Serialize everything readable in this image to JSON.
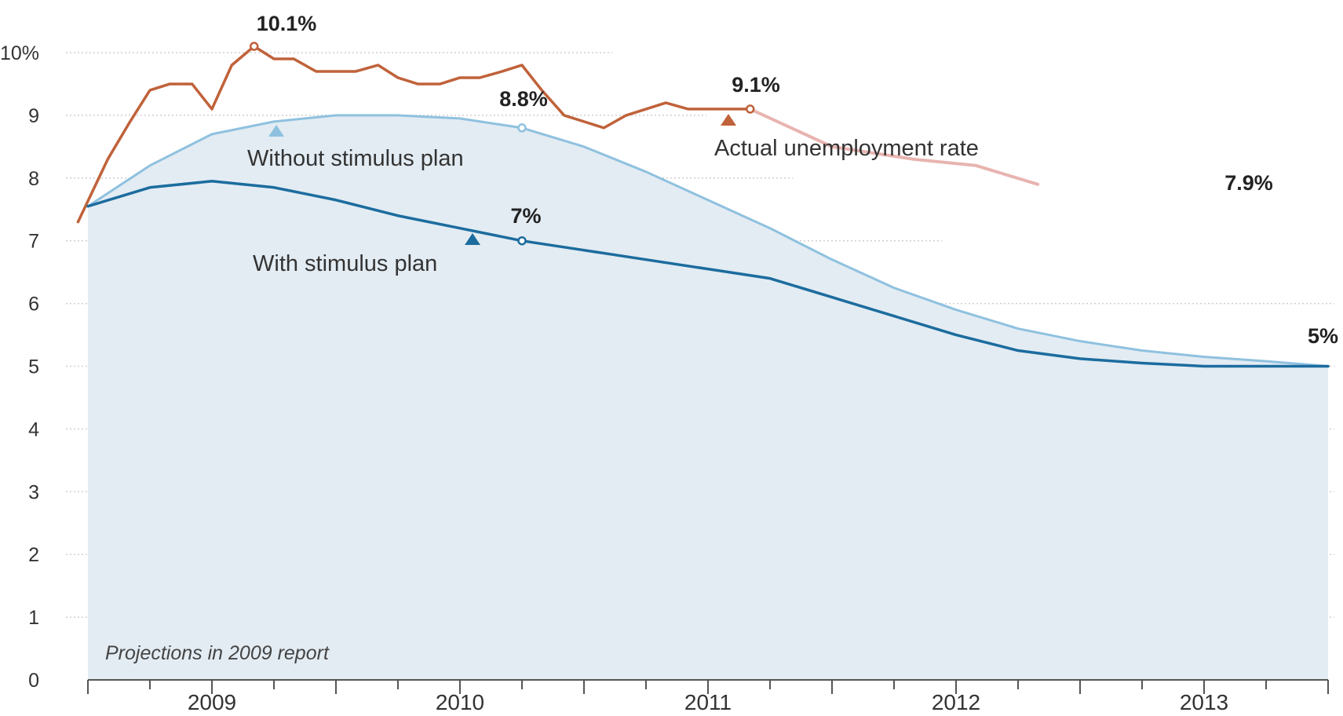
{
  "chart_data": {
    "type": "line",
    "title": "",
    "xlabel": "",
    "ylabel": "",
    "ylim": [
      0,
      10.5
    ],
    "xlim": [
      2008.5,
      2013.5
    ],
    "grid": true,
    "y_ticks": [
      "0",
      "1",
      "2",
      "3",
      "4",
      "5",
      "6",
      "7",
      "8",
      "9",
      "10%"
    ],
    "y_tick_values": [
      0,
      1,
      2,
      3,
      4,
      5,
      6,
      7,
      8,
      9,
      10
    ],
    "x_tick_labels": [
      {
        "label": "2009",
        "x": 2009.0
      },
      {
        "label": "2010",
        "x": 2010.0
      },
      {
        "label": "2011",
        "x": 2011.0
      },
      {
        "label": "2012",
        "x": 2012.0
      },
      {
        "label": "2013",
        "x": 2013.0
      }
    ],
    "series": [
      {
        "name": "Actual unemployment rate",
        "color": "#c0623a",
        "points": [
          [
            2008.46,
            7.3
          ],
          [
            2008.58,
            8.3
          ],
          [
            2008.67,
            8.9
          ],
          [
            2008.75,
            9.4
          ],
          [
            2008.83,
            9.5
          ],
          [
            2008.92,
            9.5
          ],
          [
            2009.0,
            9.1
          ],
          [
            2009.08,
            9.8
          ],
          [
            2009.17,
            10.1
          ],
          [
            2009.25,
            9.9
          ],
          [
            2009.33,
            9.9
          ],
          [
            2009.42,
            9.7
          ],
          [
            2009.5,
            9.7
          ],
          [
            2009.58,
            9.7
          ],
          [
            2009.67,
            9.8
          ],
          [
            2009.75,
            9.6
          ],
          [
            2009.83,
            9.5
          ],
          [
            2009.92,
            9.5
          ],
          [
            2010.0,
            9.6
          ],
          [
            2010.08,
            9.6
          ],
          [
            2010.17,
            9.7
          ],
          [
            2010.25,
            9.8
          ],
          [
            2010.33,
            9.4
          ],
          [
            2010.42,
            9.0
          ],
          [
            2010.5,
            8.9
          ],
          [
            2010.58,
            8.8
          ],
          [
            2010.67,
            9.0
          ],
          [
            2010.75,
            9.1
          ],
          [
            2010.83,
            9.2
          ],
          [
            2010.92,
            9.1
          ],
          [
            2011.0,
            9.1
          ],
          [
            2011.17,
            9.1
          ]
        ]
      },
      {
        "name": "Actual unemployment rate (continued)",
        "color": "#e8b4b0",
        "points": [
          [
            2011.17,
            9.1
          ],
          [
            2011.5,
            8.5
          ],
          [
            2011.83,
            8.3
          ],
          [
            2012.08,
            8.2
          ],
          [
            2012.33,
            7.9
          ]
        ]
      },
      {
        "name": "Without stimulus plan",
        "color": "#8fc1df",
        "points": [
          [
            2008.5,
            7.55
          ],
          [
            2008.75,
            8.2
          ],
          [
            2009.0,
            8.7
          ],
          [
            2009.25,
            8.9
          ],
          [
            2009.5,
            9.0
          ],
          [
            2009.75,
            9.0
          ],
          [
            2010.0,
            8.95
          ],
          [
            2010.25,
            8.8
          ],
          [
            2010.5,
            8.5
          ],
          [
            2010.75,
            8.1
          ],
          [
            2011.0,
            7.65
          ],
          [
            2011.25,
            7.2
          ],
          [
            2011.5,
            6.7
          ],
          [
            2011.75,
            6.25
          ],
          [
            2012.0,
            5.9
          ],
          [
            2012.25,
            5.6
          ],
          [
            2012.5,
            5.4
          ],
          [
            2012.75,
            5.25
          ],
          [
            2013.0,
            5.15
          ],
          [
            2013.25,
            5.08
          ],
          [
            2013.5,
            5.0
          ]
        ]
      },
      {
        "name": "With stimulus plan",
        "color": "#1c6c9e",
        "points": [
          [
            2008.5,
            7.55
          ],
          [
            2008.75,
            7.85
          ],
          [
            2009.0,
            7.95
          ],
          [
            2009.25,
            7.85
          ],
          [
            2009.5,
            7.65
          ],
          [
            2009.75,
            7.4
          ],
          [
            2010.0,
            7.2
          ],
          [
            2010.25,
            7.0
          ],
          [
            2010.5,
            6.85
          ],
          [
            2010.75,
            6.7
          ],
          [
            2011.0,
            6.55
          ],
          [
            2011.25,
            6.4
          ],
          [
            2011.5,
            6.1
          ],
          [
            2011.75,
            5.8
          ],
          [
            2012.0,
            5.5
          ],
          [
            2012.25,
            5.25
          ],
          [
            2012.5,
            5.12
          ],
          [
            2012.75,
            5.05
          ],
          [
            2013.0,
            5.0
          ],
          [
            2013.25,
            5.0
          ],
          [
            2013.5,
            5.0
          ]
        ]
      }
    ],
    "annotations": [
      {
        "text": "10.1%",
        "x": 2009.17,
        "y": 10.1,
        "style": "bold",
        "series": 0
      },
      {
        "text": "9.1%",
        "x": 2011.17,
        "y": 9.1,
        "style": "bold",
        "series": 0
      },
      {
        "text": "8.8%",
        "x": 2010.25,
        "y": 8.8,
        "style": "bold",
        "series": 2
      },
      {
        "text": "7%",
        "x": 2010.25,
        "y": 7.0,
        "style": "bold",
        "series": 3
      },
      {
        "text": "5%",
        "x": 2013.5,
        "y": 5.0,
        "style": "bold"
      },
      {
        "text": "7.9%",
        "x": 2012.33,
        "y": 7.9,
        "style": "bold"
      }
    ],
    "series_labels": [
      {
        "text": "Without stimulus plan",
        "x": 2009.05,
        "y": 8.7,
        "color": "#8fc1df"
      },
      {
        "text": "With stimulus plan",
        "x": 2010.05,
        "y": 6.97,
        "color": "#1c6c9e"
      },
      {
        "text": "Actual unemployment rate",
        "x": 2010.83,
        "y": 8.99,
        "color": "#c0623a"
      }
    ],
    "note": "Projections in 2009 report",
    "fill_color": "#e3ecf3"
  }
}
